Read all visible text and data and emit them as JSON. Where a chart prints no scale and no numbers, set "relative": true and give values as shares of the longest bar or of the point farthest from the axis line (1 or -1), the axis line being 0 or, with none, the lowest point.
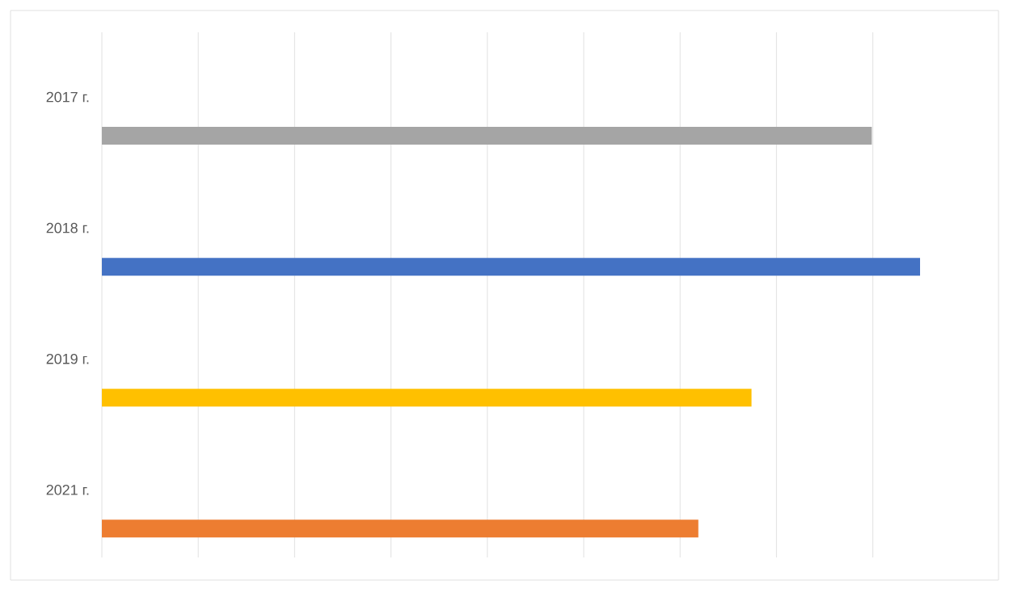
{
  "chart_data": {
    "type": "bar",
    "orientation": "horizontal",
    "relative": true,
    "categories": [
      "2017 г.",
      "2018 г.",
      "2019 г.",
      "2021 г."
    ],
    "values": [
      0.941,
      1,
      0.794,
      0.729
    ],
    "colors": [
      "#a5a5a5",
      "#4472c4",
      "#ffc000",
      "#ed7d31"
    ],
    "grid": "x"
  }
}
